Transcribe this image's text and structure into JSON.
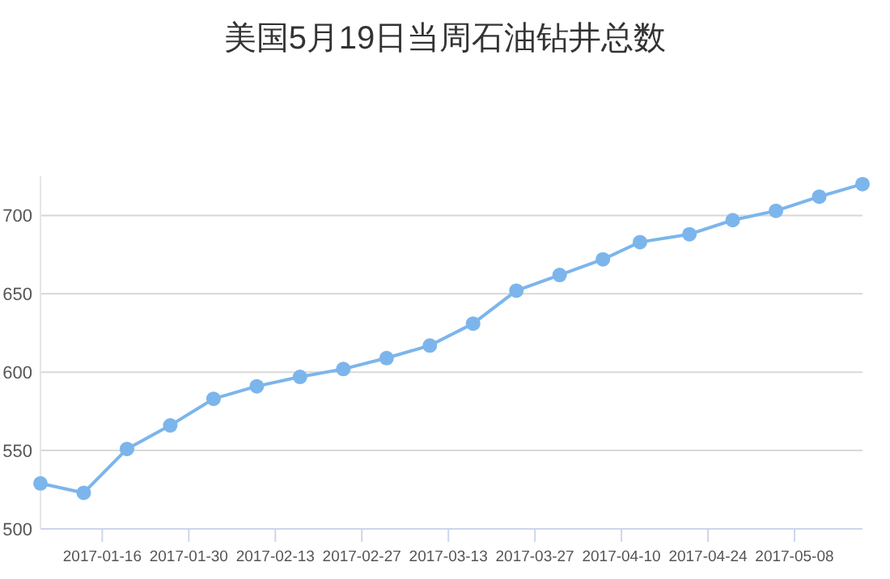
{
  "chart_data": {
    "type": "line",
    "title": "美国5月19日当周石油钻井总数",
    "x": [
      "2017-01-06",
      "2017-01-13",
      "2017-01-20",
      "2017-01-27",
      "2017-02-03",
      "2017-02-10",
      "2017-02-17",
      "2017-02-24",
      "2017-03-03",
      "2017-03-10",
      "2017-03-17",
      "2017-03-24",
      "2017-03-31",
      "2017-04-07",
      "2017-04-13",
      "2017-04-21",
      "2017-04-28",
      "2017-05-05",
      "2017-05-12",
      "2017-05-19"
    ],
    "series": [
      {
        "color": "#7cb5ec",
        "values": [
          529,
          523,
          551,
          566,
          583,
          591,
          597,
          602,
          609,
          617,
          631,
          652,
          662,
          672,
          683,
          688,
          697,
          703,
          712,
          720
        ]
      }
    ],
    "xlim": [
      "2017-01-06",
      "2017-05-19"
    ],
    "xticks": [
      "2017-01-16",
      "2017-01-30",
      "2017-02-13",
      "2017-02-27",
      "2017-03-13",
      "2017-03-27",
      "2017-04-10",
      "2017-04-24",
      "2017-05-08"
    ],
    "ylim": [
      500,
      725
    ],
    "yticks": [
      500,
      550,
      600,
      650,
      700
    ],
    "grid": "y",
    "marker": "circle",
    "line_style": "solid"
  }
}
